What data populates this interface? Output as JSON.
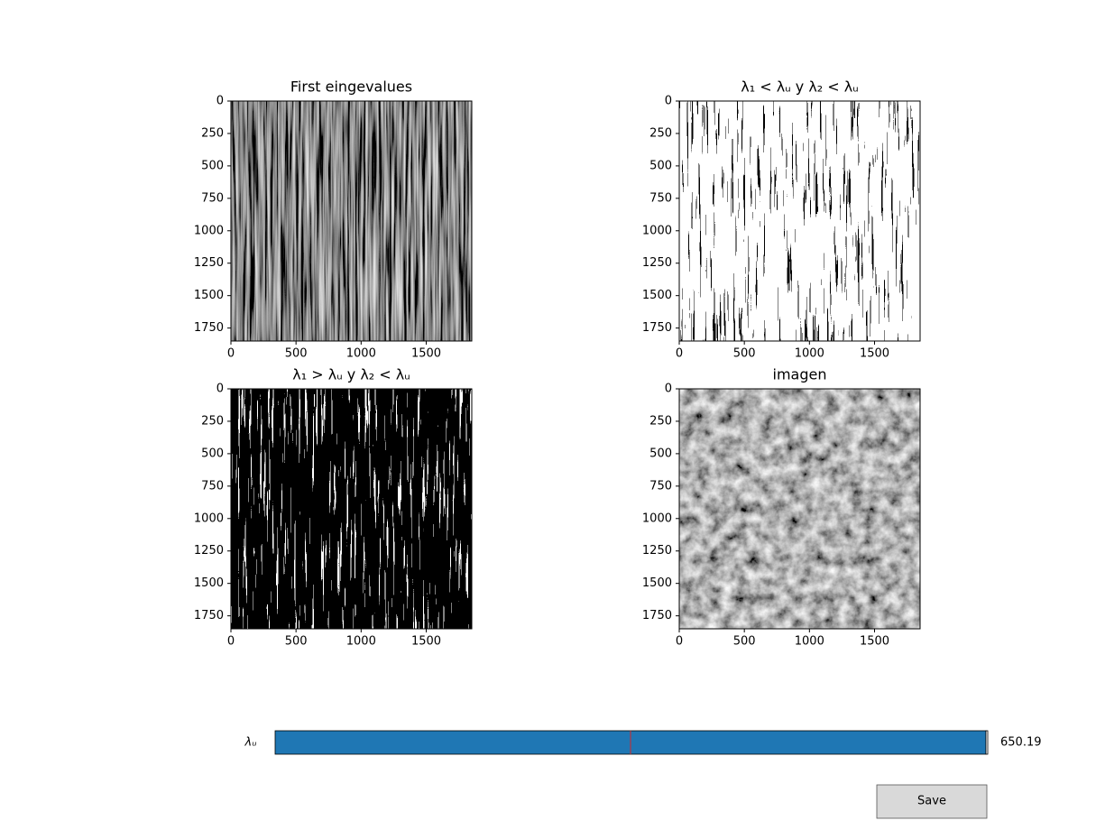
{
  "figure": {
    "axes": [
      {
        "title": "First eingevalues",
        "xlim": [
          0,
          1850
        ],
        "ylim": [
          1850,
          0
        ],
        "xticks": [
          0,
          500,
          1000,
          1500
        ],
        "yticks": [
          0,
          250,
          500,
          750,
          1000,
          1250,
          1500,
          1750
        ]
      },
      {
        "title": "λ₁ < λᵤ y λ₂ < λᵤ",
        "xlim": [
          0,
          1850
        ],
        "ylim": [
          1850,
          0
        ],
        "xticks": [
          0,
          500,
          1000,
          1500
        ],
        "yticks": [
          0,
          250,
          500,
          750,
          1000,
          1250,
          1500,
          1750
        ]
      },
      {
        "title": "λ₁ > λᵤ y λ₂ < λᵤ",
        "xlim": [
          0,
          1850
        ],
        "ylim": [
          1850,
          0
        ],
        "xticks": [
          0,
          500,
          1000,
          1500
        ],
        "yticks": [
          0,
          250,
          500,
          750,
          1000,
          1250,
          1500,
          1750
        ]
      },
      {
        "title": "imagen",
        "xlim": [
          0,
          1850
        ],
        "ylim": [
          1850,
          0
        ],
        "xticks": [
          0,
          500,
          1000,
          1500
        ],
        "yticks": [
          0,
          250,
          500,
          750,
          1000,
          1250,
          1500,
          1750
        ]
      }
    ]
  },
  "slider": {
    "label": "λᵤ",
    "value": 650.19
  },
  "button": {
    "label": "Save"
  }
}
